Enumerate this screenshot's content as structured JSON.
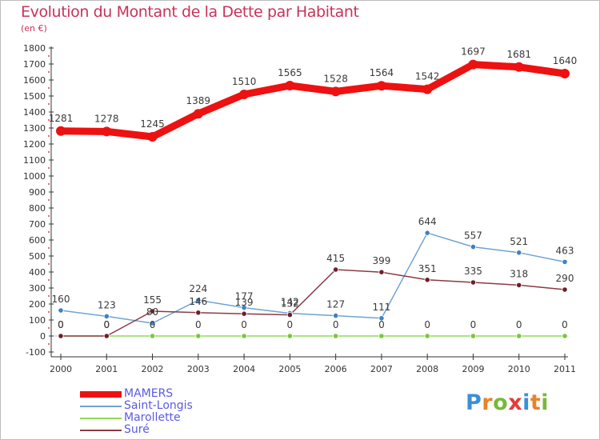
{
  "title": "Evolution du Montant de la Dette par Habitant",
  "unit_label": "(en €)",
  "logo": {
    "text": "Proxiti",
    "letter_colors": [
      "#3c8fd6",
      "#e8832a",
      "#7ab83a",
      "#e33b3b",
      "#3c8fd6",
      "#e8832a",
      "#7ab83a"
    ]
  },
  "chart_data": {
    "type": "line",
    "title": "Evolution du Montant de la Dette par Habitant",
    "ylabel": "(en €)",
    "x": [
      "2000",
      "2001",
      "2002",
      "2003",
      "2004",
      "2005",
      "2006",
      "2007",
      "2008",
      "2009",
      "2010",
      "2011"
    ],
    "y_ticks": [
      -100,
      0,
      100,
      200,
      300,
      400,
      500,
      600,
      700,
      800,
      900,
      1000,
      1100,
      1200,
      1300,
      1400,
      1500,
      1600,
      1700,
      1800
    ],
    "ylim": [
      -100,
      1800
    ],
    "grid": false,
    "legend_position": "bottom-left",
    "series": [
      {
        "name": "MAMERS",
        "color": "#ee1111",
        "values": [
          1281,
          1278,
          1245,
          1389,
          1510,
          1565,
          1528,
          1564,
          1542,
          1697,
          1681,
          1640
        ],
        "labels": [
          "1281",
          "1278",
          "1245",
          "1389",
          "1510",
          "1565",
          "1528",
          "1564",
          "1542",
          "1697",
          "1681",
          "1640"
        ]
      },
      {
        "name": "Saint-Longis",
        "color": "#6fa3d3",
        "marker": "#3d82c4",
        "values": [
          160,
          123,
          80,
          224,
          177,
          142,
          127,
          111,
          644,
          557,
          521,
          463
        ],
        "labels": [
          "160",
          "123",
          "80",
          "224",
          "177",
          "142",
          "127",
          "111",
          "644",
          "557",
          "521",
          "463"
        ]
      },
      {
        "name": "Marollette",
        "color": "#8fdb55",
        "marker": "#78c83c",
        "values": [
          0,
          0,
          0,
          0,
          0,
          0,
          0,
          0,
          0,
          0,
          0,
          0
        ],
        "labels": [
          "0",
          "0",
          "0",
          "0",
          "0",
          "0",
          "0",
          "0",
          "0",
          "0",
          "0",
          "0"
        ]
      },
      {
        "name": "Suré",
        "color": "#8a3b45",
        "marker": "#6e1f2a",
        "values": [
          0,
          0,
          155,
          146,
          139,
          132,
          415,
          399,
          351,
          335,
          318,
          290
        ],
        "labels": [
          "0",
          "0",
          "155",
          "146",
          "139",
          "132",
          "415",
          "399",
          "351",
          "335",
          "318",
          "290"
        ]
      }
    ]
  }
}
